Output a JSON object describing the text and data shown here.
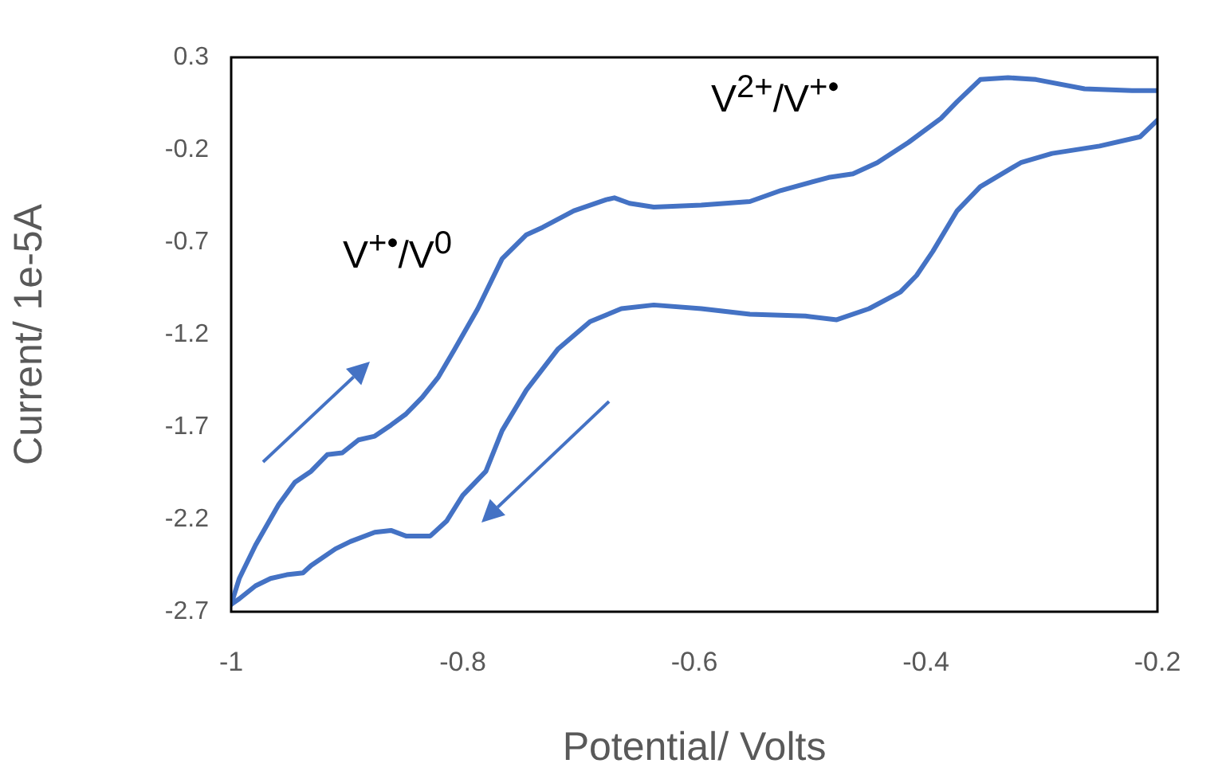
{
  "chart_data": {
    "type": "line",
    "xlabel": "Potential/ Volts",
    "ylabel": "Current/ 1e-5A",
    "xlim": [
      -1,
      -0.2
    ],
    "xticks": [
      -1,
      -0.8,
      -0.6,
      -0.4,
      -0.2
    ],
    "ylim": [
      -2.7,
      0.3
    ],
    "yticks": [
      -2.7,
      -2.2,
      -1.7,
      -1.2,
      -0.7,
      -0.2,
      0.3
    ],
    "grid": false,
    "legend": false,
    "marker": "none",
    "line_style": "solid",
    "annotations": [
      "V$^{+•}$/V$^{0}$",
      "V$^{2+}$/V$^{+•}$"
    ],
    "series": [
      {
        "color": "#4472c4",
        "x": [
          -1,
          -0.993,
          -0.979,
          -0.959,
          -0.945,
          -0.931,
          -0.917,
          -0.904,
          -0.89,
          -0.876,
          -0.862,
          -0.849,
          -0.835,
          -0.821,
          -0.807,
          -0.787,
          -0.766,
          -0.745,
          -0.731,
          -0.704,
          -0.676,
          -0.669,
          -0.656,
          -0.635,
          -0.594,
          -0.552,
          -0.525,
          -0.484,
          -0.463,
          -0.442,
          -0.415,
          -0.387,
          -0.373,
          -0.353,
          -0.329,
          -0.305,
          -0.263,
          -0.222,
          -0.2
        ],
        "values": [
          -2.66,
          -2.52,
          -2.34,
          -2.12,
          -2.0,
          -1.94,
          -1.85,
          -1.84,
          -1.77,
          -1.75,
          -1.69,
          -1.63,
          -1.54,
          -1.43,
          -1.28,
          -1.06,
          -0.79,
          -0.66,
          -0.62,
          -0.53,
          -0.47,
          -0.46,
          -0.49,
          -0.51,
          -0.5,
          -0.48,
          -0.42,
          -0.35,
          -0.33,
          -0.27,
          -0.16,
          -0.03,
          0.06,
          0.18,
          0.19,
          0.18,
          0.13,
          0.12,
          0.12
        ]
      },
      {
        "color": "#4472c4",
        "x": [
          -0.2,
          -0.215,
          -0.25,
          -0.291,
          -0.318,
          -0.353,
          -0.373,
          -0.394,
          -0.408,
          -0.422,
          -0.449,
          -0.477,
          -0.504,
          -0.552,
          -0.594,
          -0.635,
          -0.663,
          -0.69,
          -0.718,
          -0.745,
          -0.766,
          -0.78,
          -0.8,
          -0.814,
          -0.828,
          -0.849,
          -0.862,
          -0.876,
          -0.897,
          -0.91,
          -0.931,
          -0.938,
          -0.952,
          -0.966,
          -0.979,
          -0.993,
          -1
        ],
        "values": [
          -0.04,
          -0.13,
          -0.18,
          -0.22,
          -0.27,
          -0.4,
          -0.53,
          -0.75,
          -0.88,
          -0.97,
          -1.06,
          -1.12,
          -1.1,
          -1.09,
          -1.06,
          -1.04,
          -1.06,
          -1.13,
          -1.28,
          -1.5,
          -1.72,
          -1.94,
          -2.07,
          -2.21,
          -2.29,
          -2.29,
          -2.26,
          -2.27,
          -2.32,
          -2.36,
          -2.45,
          -2.49,
          -2.5,
          -2.52,
          -2.56,
          -2.63,
          -2.66
        ]
      }
    ]
  }
}
